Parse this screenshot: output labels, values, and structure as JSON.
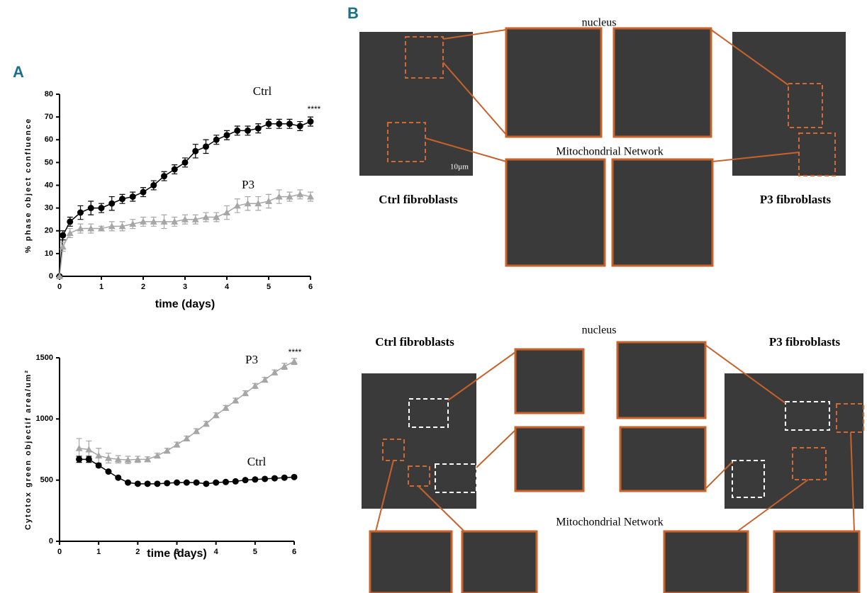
{
  "chart_data": [
    {
      "type": "line",
      "xlabel": "time (days)",
      "ylabel": "% phase object confluence",
      "xlim": [
        0,
        6
      ],
      "ylim": [
        0,
        80
      ],
      "xticks": [
        0,
        1,
        2,
        3,
        4,
        5,
        6
      ],
      "yticks": [
        0,
        10,
        20,
        30,
        40,
        50,
        60,
        70,
        80
      ],
      "x": [
        0,
        0.08,
        0.25,
        0.5,
        0.75,
        1,
        1.25,
        1.5,
        1.75,
        2,
        2.25,
        2.5,
        2.75,
        3,
        3.25,
        3.5,
        3.75,
        4,
        4.25,
        4.5,
        4.75,
        5,
        5.25,
        5.5,
        5.75,
        6
      ],
      "series": [
        {
          "name": "Ctrl",
          "color": "#000000",
          "marker": "circle",
          "values": [
            0,
            18,
            24,
            28,
            30,
            30,
            32,
            34,
            35,
            37,
            40,
            44,
            47,
            50,
            55,
            57,
            60,
            62,
            64,
            64,
            65,
            67,
            67,
            67,
            66,
            68
          ],
          "errors": [
            0,
            2,
            2,
            3,
            3,
            2,
            3,
            2,
            2,
            2,
            2,
            2,
            2,
            2,
            3,
            3,
            2,
            2,
            2,
            2,
            2,
            2,
            2,
            2,
            2,
            2
          ]
        },
        {
          "name": "P3",
          "color": "#a6a6a6",
          "marker": "triangle",
          "values": [
            0,
            13,
            19,
            21,
            21,
            21,
            22,
            22,
            23,
            24,
            24,
            24,
            24,
            25,
            25,
            26,
            26,
            28,
            31,
            32,
            32,
            33,
            35,
            35,
            36,
            35
          ],
          "errors": [
            0,
            2,
            2,
            2,
            2,
            1,
            2,
            2,
            2,
            2,
            2,
            3,
            2,
            2,
            2,
            2,
            2,
            3,
            3,
            3,
            3,
            3,
            3,
            2,
            2,
            2
          ]
        }
      ],
      "annotations": [
        "****"
      ]
    },
    {
      "type": "line",
      "xlabel": "time (days)",
      "ylabel": "Cytotox green objectif area/um²",
      "xlim": [
        0,
        6
      ],
      "ylim": [
        0,
        1500
      ],
      "xticks": [
        0,
        1,
        2,
        3,
        4,
        5,
        6
      ],
      "yticks": [
        0,
        500,
        1000,
        1500
      ],
      "x": [
        0.5,
        0.75,
        1,
        1.25,
        1.5,
        1.75,
        2,
        2.25,
        2.5,
        2.75,
        3,
        3.25,
        3.5,
        3.75,
        4,
        4.25,
        4.5,
        4.75,
        5,
        5.25,
        5.5,
        5.75,
        6
      ],
      "series": [
        {
          "name": "P3",
          "color": "#a6a6a6",
          "marker": "triangle",
          "values": [
            760,
            750,
            700,
            680,
            670,
            665,
            670,
            670,
            700,
            740,
            790,
            840,
            900,
            960,
            1030,
            1090,
            1150,
            1210,
            1270,
            1320,
            1380,
            1430,
            1470
          ],
          "errors": [
            80,
            70,
            60,
            40,
            30,
            30,
            25,
            20,
            20,
            20,
            20,
            20,
            20,
            20,
            20,
            20,
            20,
            20,
            20,
            20,
            20,
            25,
            25
          ]
        },
        {
          "name": "Ctrl",
          "color": "#000000",
          "marker": "circle",
          "values": [
            670,
            670,
            620,
            570,
            520,
            480,
            470,
            470,
            470,
            475,
            480,
            480,
            480,
            470,
            480,
            485,
            490,
            500,
            505,
            510,
            515,
            520,
            525
          ],
          "errors": [
            25,
            25,
            15,
            10,
            10,
            10,
            10,
            10,
            10,
            10,
            10,
            10,
            10,
            10,
            10,
            10,
            10,
            10,
            10,
            10,
            10,
            10,
            10
          ]
        }
      ],
      "annotations": [
        "****"
      ]
    }
  ],
  "figure": {
    "panel_labels": [
      "A",
      "B"
    ],
    "top": {
      "zoom_top": "nucleus",
      "zoom_bottom": "Mitochondrial Network",
      "left": "Ctrl fibroblasts",
      "right": "P3 fibroblasts",
      "scale_bar": "10µm"
    },
    "bottom": {
      "zoom_top": "nucleus",
      "zoom_bottom": "Mitochondrial Network",
      "left": "Ctrl fibroblasts",
      "right": "P3 fibroblasts"
    }
  }
}
